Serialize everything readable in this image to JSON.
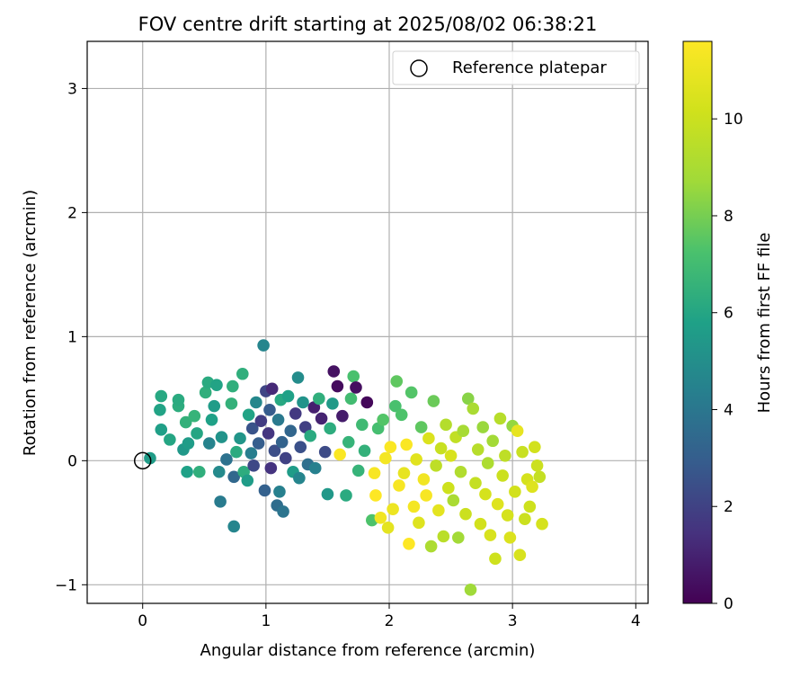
{
  "chart_data": {
    "type": "scatter",
    "title": "FOV centre drift starting at 2025/08/02 06:38:21",
    "xlabel": "Angular distance from reference (arcmin)",
    "ylabel": "Rotation from reference (arcmin)",
    "xlim": [
      -0.45,
      4.1
    ],
    "ylim": [
      -1.15,
      3.38
    ],
    "x_ticks": [
      0,
      1,
      2,
      3,
      4
    ],
    "y_ticks": [
      -1,
      0,
      1,
      2,
      3
    ],
    "grid": true,
    "legend": {
      "placement": "top-right",
      "label": "Reference platepar",
      "marker": "open-circle"
    },
    "reference_point": {
      "x": 0,
      "y": 0
    },
    "colorbar": {
      "label": "Hours from first FF file",
      "colormap": "viridis",
      "range": [
        0,
        11.6
      ],
      "ticks": [
        0,
        2,
        4,
        6,
        8,
        10
      ]
    },
    "marker_colors": {
      "reference": "#000000",
      "grid": "#b0b0b0"
    },
    "series": [
      {
        "points": [
          {
            "x": 0.06,
            "y": 0.02,
            "c": 5.6
          },
          {
            "x": 0.15,
            "y": 0.52,
            "c": 6.1
          },
          {
            "x": 0.15,
            "y": 0.25,
            "c": 5.7
          },
          {
            "x": 0.14,
            "y": 0.41,
            "c": 5.9
          },
          {
            "x": 0.22,
            "y": 0.17,
            "c": 6.0
          },
          {
            "x": 0.29,
            "y": 0.44,
            "c": 6.3
          },
          {
            "x": 0.29,
            "y": 0.49,
            "c": 6.2
          },
          {
            "x": 0.33,
            "y": 0.09,
            "c": 5.4
          },
          {
            "x": 0.35,
            "y": 0.31,
            "c": 6.5
          },
          {
            "x": 0.36,
            "y": -0.09,
            "c": 5.8
          },
          {
            "x": 0.37,
            "y": 0.14,
            "c": 5.6
          },
          {
            "x": 0.42,
            "y": 0.36,
            "c": 6.6
          },
          {
            "x": 0.44,
            "y": 0.22,
            "c": 6.0
          },
          {
            "x": 0.46,
            "y": -0.09,
            "c": 6.4
          },
          {
            "x": 0.51,
            "y": 0.55,
            "c": 6.4
          },
          {
            "x": 0.53,
            "y": 0.63,
            "c": 6.2
          },
          {
            "x": 0.54,
            "y": 0.14,
            "c": 4.5
          },
          {
            "x": 0.56,
            "y": 0.33,
            "c": 5.8
          },
          {
            "x": 0.58,
            "y": 0.44,
            "c": 5.6
          },
          {
            "x": 0.6,
            "y": 0.61,
            "c": 5.9
          },
          {
            "x": 0.62,
            "y": -0.09,
            "c": 4.8
          },
          {
            "x": 0.63,
            "y": -0.33,
            "c": 4.2
          },
          {
            "x": 0.64,
            "y": 0.19,
            "c": 5.2
          },
          {
            "x": 0.68,
            "y": 0.01,
            "c": 3.8
          },
          {
            "x": 0.72,
            "y": 0.46,
            "c": 6.5
          },
          {
            "x": 0.73,
            "y": 0.6,
            "c": 6.4
          },
          {
            "x": 0.74,
            "y": -0.53,
            "c": 4.6
          },
          {
            "x": 0.74,
            "y": -0.13,
            "c": 3.4
          },
          {
            "x": 0.76,
            "y": 0.07,
            "c": 6.2
          },
          {
            "x": 0.79,
            "y": 0.18,
            "c": 5.3
          },
          {
            "x": 0.81,
            "y": 0.7,
            "c": 6.4
          },
          {
            "x": 0.82,
            "y": -0.09,
            "c": 6.3
          },
          {
            "x": 0.85,
            "y": -0.16,
            "c": 5.6
          },
          {
            "x": 0.86,
            "y": 0.37,
            "c": 5.9
          },
          {
            "x": 0.88,
            "y": 0.06,
            "c": 4.3
          },
          {
            "x": 0.89,
            "y": 0.26,
            "c": 2.6
          },
          {
            "x": 0.9,
            "y": -0.04,
            "c": 2.2
          },
          {
            "x": 0.92,
            "y": 0.47,
            "c": 4.7
          },
          {
            "x": 0.94,
            "y": 0.14,
            "c": 3.0
          },
          {
            "x": 0.96,
            "y": 0.32,
            "c": 1.8
          },
          {
            "x": 0.98,
            "y": 0.93,
            "c": 4.6
          },
          {
            "x": 0.99,
            "y": -0.24,
            "c": 3.1
          },
          {
            "x": 1.0,
            "y": 0.56,
            "c": 2.1
          },
          {
            "x": 1.02,
            "y": 0.22,
            "c": 1.6
          },
          {
            "x": 1.03,
            "y": 0.41,
            "c": 2.9
          },
          {
            "x": 1.04,
            "y": -0.06,
            "c": 1.5
          },
          {
            "x": 1.05,
            "y": 0.58,
            "c": 1.2
          },
          {
            "x": 1.07,
            "y": 0.08,
            "c": 2.4
          },
          {
            "x": 1.09,
            "y": -0.36,
            "c": 3.6
          },
          {
            "x": 1.1,
            "y": 0.33,
            "c": 4.1
          },
          {
            "x": 1.11,
            "y": -0.25,
            "c": 4.4
          },
          {
            "x": 1.12,
            "y": 0.49,
            "c": 6.1
          },
          {
            "x": 1.13,
            "y": 0.15,
            "c": 3.2
          },
          {
            "x": 1.14,
            "y": -0.41,
            "c": 3.9
          },
          {
            "x": 1.16,
            "y": 0.02,
            "c": 2.0
          },
          {
            "x": 1.18,
            "y": 0.52,
            "c": 5.8
          },
          {
            "x": 1.2,
            "y": 0.24,
            "c": 3.3
          },
          {
            "x": 1.22,
            "y": -0.09,
            "c": 5.6
          },
          {
            "x": 1.24,
            "y": 0.38,
            "c": 1.7
          },
          {
            "x": 1.26,
            "y": 0.67,
            "c": 4.9
          },
          {
            "x": 1.27,
            "y": -0.14,
            "c": 4.6
          },
          {
            "x": 1.28,
            "y": 0.11,
            "c": 2.5
          },
          {
            "x": 1.3,
            "y": 0.47,
            "c": 5.2
          },
          {
            "x": 1.32,
            "y": 0.27,
            "c": 1.9
          },
          {
            "x": 1.34,
            "y": -0.03,
            "c": 3.7
          },
          {
            "x": 1.36,
            "y": 0.2,
            "c": 6.2
          },
          {
            "x": 1.39,
            "y": 0.43,
            "c": 0.9
          },
          {
            "x": 1.4,
            "y": -0.06,
            "c": 4.4
          },
          {
            "x": 1.43,
            "y": 0.5,
            "c": 6.4
          },
          {
            "x": 1.45,
            "y": 0.34,
            "c": 1.0
          },
          {
            "x": 1.48,
            "y": 0.07,
            "c": 2.3
          },
          {
            "x": 1.5,
            "y": -0.27,
            "c": 5.4
          },
          {
            "x": 1.52,
            "y": 0.26,
            "c": 6.3
          },
          {
            "x": 1.54,
            "y": 0.46,
            "c": 5.5
          },
          {
            "x": 1.55,
            "y": 0.72,
            "c": 0.5
          },
          {
            "x": 1.58,
            "y": 0.6,
            "c": 0.3
          },
          {
            "x": 1.6,
            "y": 0.05,
            "c": 11.5
          },
          {
            "x": 1.62,
            "y": 0.36,
            "c": 0.8
          },
          {
            "x": 1.65,
            "y": -0.28,
            "c": 6.2
          },
          {
            "x": 1.67,
            "y": 0.15,
            "c": 6.6
          },
          {
            "x": 1.69,
            "y": 0.5,
            "c": 7.0
          },
          {
            "x": 1.71,
            "y": 0.68,
            "c": 7.2
          },
          {
            "x": 1.73,
            "y": 0.59,
            "c": 0.4
          },
          {
            "x": 1.75,
            "y": -0.08,
            "c": 6.6
          },
          {
            "x": 1.78,
            "y": 0.29,
            "c": 6.9
          },
          {
            "x": 1.8,
            "y": 0.08,
            "c": 6.5
          },
          {
            "x": 1.82,
            "y": 0.47,
            "c": 0.2
          },
          {
            "x": 1.86,
            "y": -0.48,
            "c": 7.3
          },
          {
            "x": 1.88,
            "y": -0.1,
            "c": 11.4
          },
          {
            "x": 1.89,
            "y": -0.28,
            "c": 11.6
          },
          {
            "x": 1.91,
            "y": 0.26,
            "c": 7.1
          },
          {
            "x": 1.93,
            "y": -0.46,
            "c": 11.2
          },
          {
            "x": 1.95,
            "y": 0.33,
            "c": 7.4
          },
          {
            "x": 1.97,
            "y": 0.02,
            "c": 11.3
          },
          {
            "x": 1.99,
            "y": -0.54,
            "c": 10.8
          },
          {
            "x": 2.01,
            "y": 0.11,
            "c": 11.5
          },
          {
            "x": 2.03,
            "y": -0.39,
            "c": 11.1
          },
          {
            "x": 2.05,
            "y": 0.44,
            "c": 7.2
          },
          {
            "x": 2.06,
            "y": 0.64,
            "c": 7.6
          },
          {
            "x": 2.08,
            "y": -0.2,
            "c": 11.4
          },
          {
            "x": 2.1,
            "y": 0.37,
            "c": 7.3
          },
          {
            "x": 2.12,
            "y": -0.1,
            "c": 10.9
          },
          {
            "x": 2.14,
            "y": 0.13,
            "c": 11.5
          },
          {
            "x": 2.16,
            "y": -0.67,
            "c": 11.6
          },
          {
            "x": 2.18,
            "y": 0.55,
            "c": 7.4
          },
          {
            "x": 2.2,
            "y": -0.37,
            "c": 11.3
          },
          {
            "x": 2.22,
            "y": 0.01,
            "c": 10.7
          },
          {
            "x": 2.24,
            "y": -0.5,
            "c": 10.6
          },
          {
            "x": 2.26,
            "y": 0.27,
            "c": 7.6
          },
          {
            "x": 2.28,
            "y": -0.15,
            "c": 11.2
          },
          {
            "x": 2.3,
            "y": -0.28,
            "c": 11.4
          },
          {
            "x": 2.32,
            "y": 0.18,
            "c": 10.5
          },
          {
            "x": 2.34,
            "y": -0.69,
            "c": 9.1
          },
          {
            "x": 2.36,
            "y": 0.48,
            "c": 7.8
          },
          {
            "x": 2.38,
            "y": -0.04,
            "c": 9.6
          },
          {
            "x": 2.4,
            "y": -0.4,
            "c": 10.8
          },
          {
            "x": 2.42,
            "y": 0.1,
            "c": 9.9
          },
          {
            "x": 2.44,
            "y": -0.61,
            "c": 9.5
          },
          {
            "x": 2.46,
            "y": 0.29,
            "c": 9.3
          },
          {
            "x": 2.48,
            "y": -0.22,
            "c": 10.1
          },
          {
            "x": 2.5,
            "y": 0.04,
            "c": 10.4
          },
          {
            "x": 2.52,
            "y": -0.32,
            "c": 9.0
          },
          {
            "x": 2.54,
            "y": 0.19,
            "c": 9.7
          },
          {
            "x": 2.56,
            "y": -0.62,
            "c": 8.8
          },
          {
            "x": 2.58,
            "y": -0.09,
            "c": 9.2
          },
          {
            "x": 2.6,
            "y": 0.24,
            "c": 8.9
          },
          {
            "x": 2.62,
            "y": -0.43,
            "c": 10.0
          },
          {
            "x": 2.64,
            "y": 0.5,
            "c": 8.3
          },
          {
            "x": 2.66,
            "y": -1.04,
            "c": 8.7
          },
          {
            "x": 2.68,
            "y": 0.42,
            "c": 9.0
          },
          {
            "x": 2.7,
            "y": -0.18,
            "c": 9.8
          },
          {
            "x": 2.72,
            "y": 0.09,
            "c": 9.4
          },
          {
            "x": 2.74,
            "y": -0.51,
            "c": 10.2
          },
          {
            "x": 2.76,
            "y": 0.27,
            "c": 8.6
          },
          {
            "x": 2.78,
            "y": -0.27,
            "c": 10.3
          },
          {
            "x": 2.8,
            "y": -0.02,
            "c": 9.1
          },
          {
            "x": 2.82,
            "y": -0.6,
            "c": 10.4
          },
          {
            "x": 2.84,
            "y": 0.16,
            "c": 8.8
          },
          {
            "x": 2.86,
            "y": -0.79,
            "c": 10.1
          },
          {
            "x": 2.88,
            "y": -0.35,
            "c": 10.6
          },
          {
            "x": 2.9,
            "y": 0.34,
            "c": 9.4
          },
          {
            "x": 2.92,
            "y": -0.12,
            "c": 10.0
          },
          {
            "x": 2.94,
            "y": 0.04,
            "c": 9.6
          },
          {
            "x": 2.96,
            "y": -0.44,
            "c": 10.3
          },
          {
            "x": 2.98,
            "y": -0.62,
            "c": 10.5
          },
          {
            "x": 3.0,
            "y": 0.28,
            "c": 8.5
          },
          {
            "x": 3.02,
            "y": -0.25,
            "c": 10.2
          },
          {
            "x": 3.04,
            "y": 0.24,
            "c": 10.9
          },
          {
            "x": 3.06,
            "y": -0.76,
            "c": 10.4
          },
          {
            "x": 3.08,
            "y": 0.07,
            "c": 9.9
          },
          {
            "x": 3.1,
            "y": -0.47,
            "c": 10.0
          },
          {
            "x": 3.12,
            "y": -0.15,
            "c": 10.3
          },
          {
            "x": 3.14,
            "y": -0.37,
            "c": 10.1
          },
          {
            "x": 3.16,
            "y": -0.21,
            "c": 10.6
          },
          {
            "x": 3.18,
            "y": 0.11,
            "c": 10.2
          },
          {
            "x": 3.2,
            "y": -0.04,
            "c": 10.0
          },
          {
            "x": 3.22,
            "y": -0.13,
            "c": 9.8
          },
          {
            "x": 3.24,
            "y": -0.51,
            "c": 10.3
          }
        ]
      }
    ]
  }
}
